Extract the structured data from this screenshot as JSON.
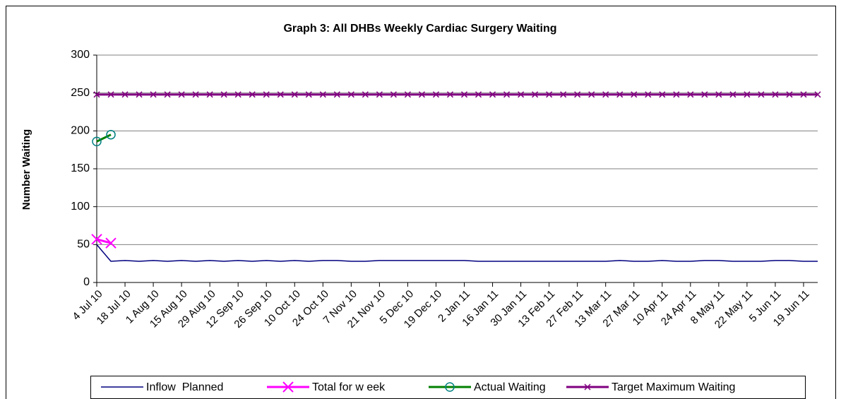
{
  "chart_data": {
    "type": "line",
    "title": "Graph 3: All DHBs Weekly Cardiac Surgery Waiting",
    "y_label": "Number Waiting",
    "categories": [
      "4 Jul 10",
      null,
      "18 Jul 10",
      null,
      "1 Aug 10",
      null,
      "15 Aug 10",
      null,
      "29 Aug 10",
      null,
      "12 Sep 10",
      null,
      "26 Sep 10",
      null,
      "10 Oct 10",
      null,
      "24 Oct 10",
      null,
      "7 Nov 10",
      null,
      "21 Nov 10",
      null,
      "5 Dec 10",
      null,
      "19 Dec 10",
      null,
      "2 Jan 11",
      null,
      "16 Jan 11",
      null,
      "30 Jan 11",
      null,
      "13 Feb 11",
      null,
      "27 Feb 11",
      null,
      "13 Mar 11",
      null,
      "27 Mar 11",
      null,
      "10 Apr 11",
      null,
      "24 Apr 11",
      null,
      "8 May 11",
      null,
      "22 May 11",
      null,
      "5 Jun 11",
      null,
      "19 Jun 11",
      null
    ],
    "series": [
      {
        "name": "Inflow  Planned",
        "color": "#000080",
        "marker": "none",
        "values": [
          50,
          28,
          29,
          28,
          29,
          28,
          29,
          28,
          29,
          28,
          29,
          28,
          29,
          28,
          29,
          28,
          29,
          29,
          28,
          28,
          29,
          29,
          29,
          29,
          29,
          29,
          29,
          28,
          28,
          28,
          28,
          28,
          28,
          28,
          28,
          28,
          28,
          29,
          28,
          28,
          29,
          28,
          28,
          29,
          29,
          28,
          28,
          28,
          29,
          29,
          28,
          28
        ]
      },
      {
        "name": "Total for w eek",
        "color": "#ff00ff",
        "marker": "x",
        "values": [
          57,
          52,
          null,
          null,
          null,
          null,
          null,
          null,
          null,
          null,
          null,
          null,
          null,
          null,
          null,
          null,
          null,
          null,
          null,
          null,
          null,
          null,
          null,
          null,
          null,
          null,
          null,
          null,
          null,
          null,
          null,
          null,
          null,
          null,
          null,
          null,
          null,
          null,
          null,
          null,
          null,
          null,
          null,
          null,
          null,
          null,
          null,
          null,
          null,
          null,
          null,
          null
        ]
      },
      {
        "name": "Actual Waiting",
        "color": "#008000",
        "marker": "circle",
        "values": [
          186,
          195,
          null,
          null,
          null,
          null,
          null,
          null,
          null,
          null,
          null,
          null,
          null,
          null,
          null,
          null,
          null,
          null,
          null,
          null,
          null,
          null,
          null,
          null,
          null,
          null,
          null,
          null,
          null,
          null,
          null,
          null,
          null,
          null,
          null,
          null,
          null,
          null,
          null,
          null,
          null,
          null,
          null,
          null,
          null,
          null,
          null,
          null,
          null,
          null,
          null,
          null
        ]
      },
      {
        "name": "Target Maximum Waiting",
        "color": "#800080",
        "marker": "x-small",
        "values": [
          248,
          248,
          248,
          248,
          248,
          248,
          248,
          248,
          248,
          248,
          248,
          248,
          248,
          248,
          248,
          248,
          248,
          248,
          248,
          248,
          248,
          248,
          248,
          248,
          248,
          248,
          248,
          248,
          248,
          248,
          248,
          248,
          248,
          248,
          248,
          248,
          248,
          248,
          248,
          248,
          248,
          248,
          248,
          248,
          248,
          248,
          248,
          248,
          248,
          248,
          248,
          248
        ]
      }
    ],
    "ylim": [
      0,
      300
    ],
    "yticks": [
      0,
      50,
      100,
      150,
      200,
      250,
      300
    ],
    "grid": true,
    "legend": "bottom"
  }
}
